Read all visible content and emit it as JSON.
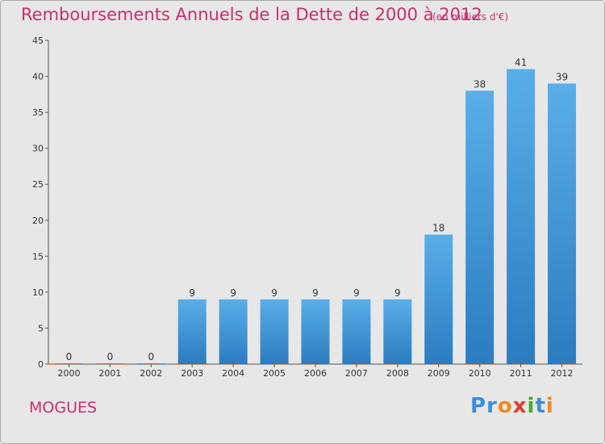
{
  "header": {
    "title": "Remboursements Annuels de la Dette de 2000 à 2012",
    "unit": "(en milliers d'€)"
  },
  "commune": "MOGUES",
  "logo": {
    "text": "Proxiti",
    "letters": [
      {
        "ch": "P",
        "color": "#3b8fd9"
      },
      {
        "ch": "r",
        "color": "#3b8fd9"
      },
      {
        "ch": "o",
        "color": "#f08a1e"
      },
      {
        "ch": "x",
        "color": "#e33c2b"
      },
      {
        "ch": "i",
        "color": "#4aa832"
      },
      {
        "ch": "t",
        "color": "#3b8fd9"
      },
      {
        "ch": "i",
        "color": "#f08a1e"
      }
    ]
  },
  "colors": {
    "title": "#c8306a",
    "bar_top": "#5aaee8",
    "bar_bottom": "#2b7cc0",
    "background": "#e7e7e7"
  },
  "chart_data": {
    "type": "bar",
    "title": "Remboursements Annuels de la Dette de 2000 à 2012",
    "categories": [
      "2000",
      "2001",
      "2002",
      "2003",
      "2004",
      "2005",
      "2006",
      "2007",
      "2008",
      "2009",
      "2010",
      "2011",
      "2012"
    ],
    "values": [
      0,
      0,
      0,
      9,
      9,
      9,
      9,
      9,
      9,
      18,
      38,
      41,
      39
    ],
    "ylim": [
      0,
      45
    ],
    "yticks": [
      0,
      5,
      10,
      15,
      20,
      25,
      30,
      35,
      40,
      45
    ],
    "grid": false,
    "legend": "none"
  }
}
